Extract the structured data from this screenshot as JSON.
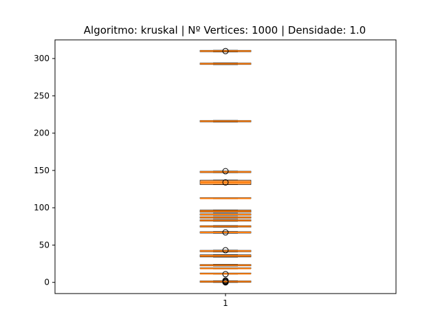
{
  "chart_data": {
    "type": "box",
    "title": "Algoritmo: kruskal | Nº Vertices: 1000 | Densidade: 1.0",
    "xlabel": "",
    "ylabel": "",
    "x_ticks": [
      "1"
    ],
    "y_ticks": [
      0,
      50,
      100,
      150,
      200,
      250,
      300
    ],
    "ylim": [
      -15,
      325
    ],
    "grid": false,
    "legend": "none",
    "box_color": "#ff7f0e",
    "edge_color": "#000000",
    "box_summaries": [
      {
        "q1": 0,
        "q3": 2,
        "median": 1,
        "whisker_low": 0,
        "whisker_high": 2
      },
      {
        "q1": 11,
        "q3": 12,
        "median": 11.5,
        "whisker_low": 11,
        "whisker_high": 12
      },
      {
        "q1": 18,
        "q3": 19,
        "median": 18.5,
        "whisker_low": 18,
        "whisker_high": 19
      },
      {
        "q1": 22,
        "q3": 24,
        "median": 23,
        "whisker_low": 22,
        "whisker_high": 24
      },
      {
        "q1": 34,
        "q3": 37,
        "median": 35.5,
        "whisker_low": 34,
        "whisker_high": 37
      },
      {
        "q1": 41,
        "q3": 43,
        "median": 42,
        "whisker_low": 41,
        "whisker_high": 43
      },
      {
        "q1": 66,
        "q3": 68,
        "median": 67,
        "whisker_low": 66,
        "whisker_high": 68
      },
      {
        "q1": 74,
        "q3": 76,
        "median": 75,
        "whisker_low": 74,
        "whisker_high": 76
      },
      {
        "q1": 82,
        "q3": 84,
        "median": 83,
        "whisker_low": 82,
        "whisker_high": 84
      },
      {
        "q1": 86,
        "q3": 88,
        "median": 87,
        "whisker_low": 86,
        "whisker_high": 88
      },
      {
        "q1": 90,
        "q3": 92,
        "median": 91,
        "whisker_low": 90,
        "whisker_high": 92
      },
      {
        "q1": 94,
        "q3": 97,
        "median": 95.5,
        "whisker_low": 94,
        "whisker_high": 97
      },
      {
        "q1": 112,
        "q3": 113,
        "median": 112.5,
        "whisker_low": 112,
        "whisker_high": 113
      },
      {
        "q1": 131,
        "q3": 137,
        "median": 134,
        "whisker_low": 131,
        "whisker_high": 137
      },
      {
        "q1": 147,
        "q3": 149,
        "median": 148,
        "whisker_low": 147,
        "whisker_high": 149
      },
      {
        "q1": 215,
        "q3": 217,
        "median": 216,
        "whisker_low": 215,
        "whisker_high": 217
      },
      {
        "q1": 292,
        "q3": 294,
        "median": 293,
        "whisker_low": 292,
        "whisker_high": 294
      },
      {
        "q1": 309,
        "q3": 311,
        "median": 310,
        "whisker_low": 309,
        "whisker_high": 311
      }
    ],
    "outliers": [
      0,
      0.5,
      1.5,
      2.5,
      11,
      43,
      67,
      134,
      149,
      310
    ]
  }
}
